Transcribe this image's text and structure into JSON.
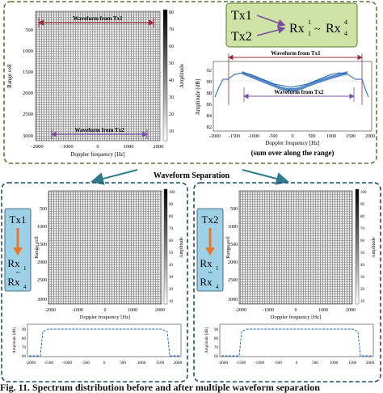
{
  "caption": "Fig. 11.  Spectrum distribution before and after multiple waveform separation",
  "top_panel": {
    "heatmap": {
      "ylabel": "Range cell",
      "xlabel": "Doppler frequency [Hz]",
      "xticks": [
        "-2000",
        "-1000",
        "0",
        "1000",
        "2000"
      ],
      "yticks": [
        "500",
        "1000",
        "1500",
        "2000",
        "2500",
        "3000"
      ],
      "colorbar_label": "Amplitude",
      "colorbar_ticks": [
        "80",
        "70",
        "60",
        "50",
        "40",
        "30",
        "20",
        "10"
      ],
      "label_tx1": "Waveform from Tx1",
      "label_tx2": "Waveform from Tx2"
    },
    "mapping_box": {
      "tx1": "Tx1",
      "tx2": "Tx2",
      "rx_base": "Rx",
      "sup1": "1",
      "sub1": "1",
      "sup4": "4",
      "sub4": "4",
      "tilde": "~"
    },
    "profile": {
      "ylabel": "Amplitude [dB]",
      "xlabel": "Doppler frequency [Hz]",
      "sublabel": "(sum over along the range)",
      "yticks": [
        "92",
        "90",
        "88",
        "86",
        "84",
        "82"
      ],
      "xticks": [
        "-2000",
        "-1500",
        "-1000",
        "-500",
        "0",
        "500",
        "1000",
        "1500",
        "2000"
      ],
      "label_tx1": "Waveform from Tx1",
      "label_tx2": "Waveform from Tx2"
    }
  },
  "separation_label": "Waveform Separation",
  "left_panel": {
    "tx": "Tx1",
    "rx_base": "Rx",
    "rx_top_sub": "1",
    "rx_bottom_sub": "4",
    "tilde": "~",
    "heatmap": {
      "ylabel": "Range cell",
      "xlabel": "Doppler frequency [Hz]",
      "xticks": [
        "-2000",
        "-1000",
        "0",
        "1000",
        "2000"
      ],
      "yticks": [
        "500",
        "1000",
        "1500",
        "2000",
        "2500",
        "3000"
      ],
      "colorbar_label": "Amplitude",
      "colorbar_ticks": [
        "100",
        "90",
        "80",
        "70",
        "60",
        "50",
        "40",
        "30",
        "20",
        "10"
      ]
    },
    "profile": {
      "ylabel": "Amplitude [dB]",
      "yticks": [
        "90",
        "80",
        "70",
        "60"
      ],
      "xticks": [
        "-2000",
        "-1500",
        "-1000",
        "-500",
        "0",
        "500",
        "1000",
        "1500",
        "2000"
      ]
    }
  },
  "right_panel": {
    "tx": "Tx2",
    "rx_base": "Rx",
    "rx_top_sub": "1",
    "rx_bottom_sub": "4",
    "tilde": "~",
    "heatmap": {
      "ylabel": "Range cell",
      "xlabel": "Doppler frequency [Hz]",
      "xticks": [
        "-2000",
        "-1000",
        "0",
        "1000",
        "2000"
      ],
      "yticks": [
        "500",
        "1000",
        "1500",
        "2000",
        "2500",
        "3000"
      ],
      "colorbar_label": "Amplitude",
      "colorbar_ticks": [
        "100",
        "90",
        "80",
        "70",
        "60",
        "50",
        "40",
        "30",
        "20",
        "10"
      ]
    },
    "profile": {
      "ylabel": "Amplitude [dB]",
      "yticks": [
        "90",
        "80",
        "70",
        "60"
      ],
      "xticks": [
        "-2000",
        "-1500",
        "-1000",
        "-500",
        "0",
        "500",
        "1000",
        "1500",
        "2000"
      ]
    }
  },
  "colors": {
    "frame_top": "#5d7a2a",
    "frame_bottom": "#1f4e6e",
    "arrow_teal": "#2e7d8c",
    "box_green": "#cfe3a6",
    "box_blue": "#9fd1e6",
    "tx1_arrow": "#9b2c3a",
    "tx2_arrow": "#7b4fa0",
    "profile_line": "#1b63b8",
    "orange_arrow": "#e8762b"
  }
}
